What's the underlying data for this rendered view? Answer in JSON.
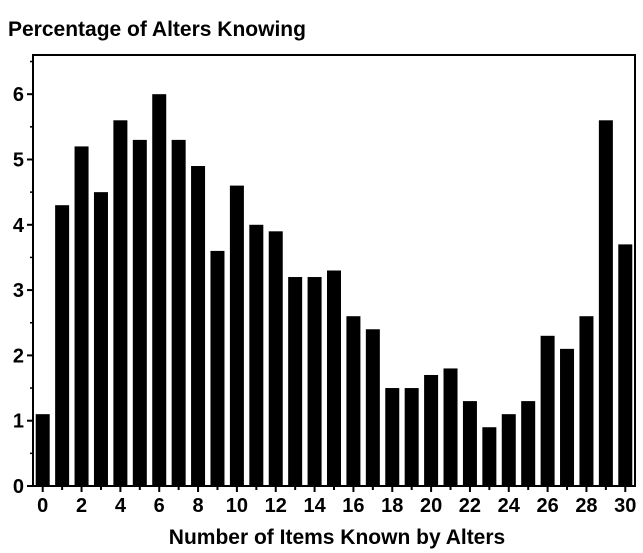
{
  "chart_data": {
    "type": "bar",
    "title": "Percentage of Alters Knowing",
    "xlabel": "Number of Items Known by Alters",
    "ylabel": "",
    "categories": [
      0,
      1,
      2,
      3,
      4,
      5,
      6,
      7,
      8,
      9,
      10,
      11,
      12,
      13,
      14,
      15,
      16,
      17,
      18,
      19,
      20,
      21,
      22,
      23,
      24,
      25,
      26,
      27,
      28,
      29,
      30
    ],
    "values": [
      1.1,
      4.3,
      5.2,
      4.5,
      5.6,
      5.3,
      6.0,
      5.3,
      4.9,
      3.6,
      4.6,
      4.0,
      3.9,
      3.2,
      3.2,
      3.3,
      2.6,
      2.4,
      1.5,
      1.5,
      1.7,
      1.8,
      1.3,
      0.9,
      1.1,
      1.3,
      2.3,
      2.1,
      2.6,
      5.6,
      3.7
    ],
    "ylim": [
      0,
      6.6
    ],
    "yticks": [
      0,
      1,
      2,
      3,
      4,
      5,
      6
    ],
    "xticks": [
      0,
      2,
      4,
      6,
      8,
      10,
      12,
      14,
      16,
      18,
      20,
      22,
      24,
      26,
      28,
      30
    ],
    "grid": false,
    "bar_color": "#000000"
  }
}
